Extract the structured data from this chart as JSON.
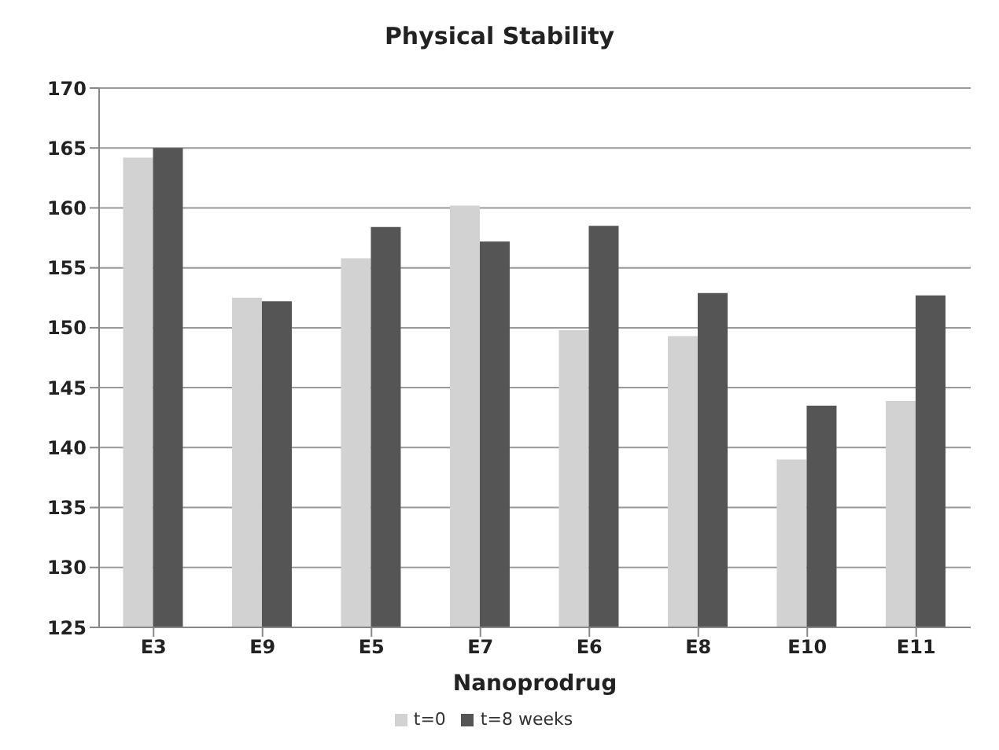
{
  "chart_data": {
    "type": "bar",
    "title": "Physical Stability",
    "xlabel": "Nanoprodrug",
    "categories": [
      "E3",
      "E9",
      "E5",
      "E7",
      "E6",
      "E8",
      "E10",
      "E11"
    ],
    "series": [
      {
        "name": "t=0",
        "color": "#d2d2d2",
        "values": [
          164.2,
          152.5,
          155.8,
          160.2,
          149.8,
          149.3,
          139,
          143.9
        ]
      },
      {
        "name": "t=8 weeks",
        "color": "#555555",
        "values": [
          165,
          152.2,
          158.4,
          157.2,
          158.5,
          152.9,
          143.5,
          152.7
        ]
      }
    ],
    "ylim": [
      125,
      170
    ],
    "yticks": [
      125,
      130,
      135,
      140,
      145,
      150,
      155,
      160,
      165,
      170
    ],
    "grid": "y",
    "legend": "bottom"
  }
}
